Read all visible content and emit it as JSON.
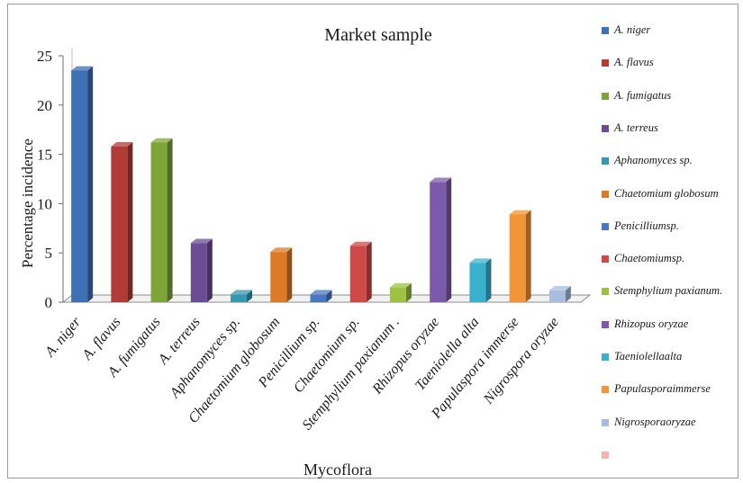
{
  "chart_data": {
    "type": "bar",
    "title": "Market sample",
    "xlabel": "Mycoflora",
    "ylabel": "Percentage incidence",
    "ylim": [
      0,
      25
    ],
    "yticks": [
      "0",
      "5",
      "10",
      "15",
      "20",
      "25"
    ],
    "grid": false,
    "legend_position": "right",
    "categories": [
      "A. niger",
      "A. flavus",
      "A. fumigatus",
      "A. terreus",
      "Aphanomyces sp.",
      "Chaetomium globosum",
      "Penicillium  sp.",
      "Chaetomium sp.",
      "Stemphylium paxianum .",
      "Rhizopus oryzae",
      "Taeniolella alta",
      "Papulaspora immerse",
      "Nigrospora oryzae"
    ],
    "values": [
      23.5,
      15.8,
      16.2,
      6.0,
      0.8,
      5.1,
      0.8,
      5.7,
      1.5,
      12.2,
      4.0,
      8.9,
      1.2
    ],
    "colors": [
      "#3f6fb5",
      "#b23a37",
      "#7ea53a",
      "#6a4d93",
      "#3598b0",
      "#dd7a27",
      "#4978c0",
      "#cf4a46",
      "#9dc143",
      "#7d5aa9",
      "#3ab0cf",
      "#f29536",
      "#a8bde0"
    ],
    "legend": [
      {
        "label": "A. niger",
        "color": "#3f6fb5"
      },
      {
        "label": "A. flavus",
        "color": "#b23a37"
      },
      {
        "label": "A. fumigatus",
        "color": "#7ea53a"
      },
      {
        "label": "A. terreus",
        "color": "#6a4d93"
      },
      {
        "label": "Aphanomyces sp.",
        "color": "#3598b0"
      },
      {
        "label": "Chaetomium globosum",
        "color": "#dd7a27"
      },
      {
        "label": "Penicilliumsp.",
        "color": "#4978c0"
      },
      {
        "label": "Chaetomiumsp.",
        "color": "#cf4a46"
      },
      {
        "label": "Stemphylium paxianum.",
        "color": "#9dc143"
      },
      {
        "label": "Rhizopus oryzae",
        "color": "#7d5aa9"
      },
      {
        "label": "Taeniolellaalta",
        "color": "#3ab0cf"
      },
      {
        "label": "Papulasporaimmerse",
        "color": "#f29536"
      },
      {
        "label": "Nigrosporaoryzae",
        "color": "#a8bde0"
      },
      {
        "label": "",
        "color": "#f2b3b3"
      }
    ]
  }
}
